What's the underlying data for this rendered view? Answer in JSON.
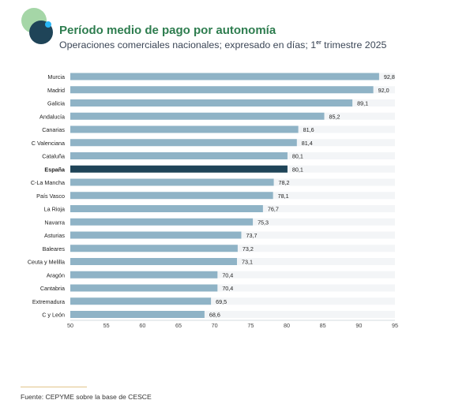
{
  "header": {
    "title": "Período medio de pago por autonomía",
    "subtitle_main": "Operaciones comerciales nacionales; expresado en días; 1",
    "subtitle_sup": "er",
    "subtitle_end": " trimestre 2025"
  },
  "colors": {
    "bar": "#8fb3c6",
    "highlight": "#1f4458",
    "track": "#f3f5f7",
    "logo_green": "#a5d6a7",
    "logo_navy": "#1f4458",
    "logo_accent": "#29b6f6",
    "title": "#2e7d4f"
  },
  "chart_data": {
    "type": "bar",
    "orientation": "horizontal",
    "categories": [
      "Murcia",
      "Madrid",
      "Galicia",
      "Andalucía",
      "Canarias",
      "C Valenciana",
      "Cataluña",
      "España",
      "C-La Mancha",
      "País Vasco",
      "La Rioja",
      "Navarra",
      "Asturias",
      "Baleares",
      "Ceuta y Melilla",
      "Aragón",
      "Cantabria",
      "Extremadura",
      "C y León"
    ],
    "values": [
      92.8,
      92.0,
      89.1,
      85.2,
      81.6,
      81.4,
      80.1,
      80.1,
      78.2,
      78.1,
      76.7,
      75.3,
      73.7,
      73.2,
      73.1,
      70.4,
      70.4,
      69.5,
      68.6
    ],
    "value_labels": [
      "92,8",
      "92,0",
      "89,1",
      "85,2",
      "81,6",
      "81,4",
      "80,1",
      "80,1",
      "78,2",
      "78,1",
      "76,7",
      "75,3",
      "73,7",
      "73,2",
      "73,1",
      "70,4",
      "70,4",
      "69,5",
      "68,6"
    ],
    "highlight": "España",
    "xlim": [
      50,
      95
    ],
    "xticks": [
      50,
      55,
      60,
      65,
      70,
      75,
      80,
      85,
      90,
      95
    ],
    "xlabel": "",
    "ylabel": "",
    "grid": false
  },
  "footer": {
    "source": "Fuente: CEPYME sobre la base de CESCE"
  }
}
